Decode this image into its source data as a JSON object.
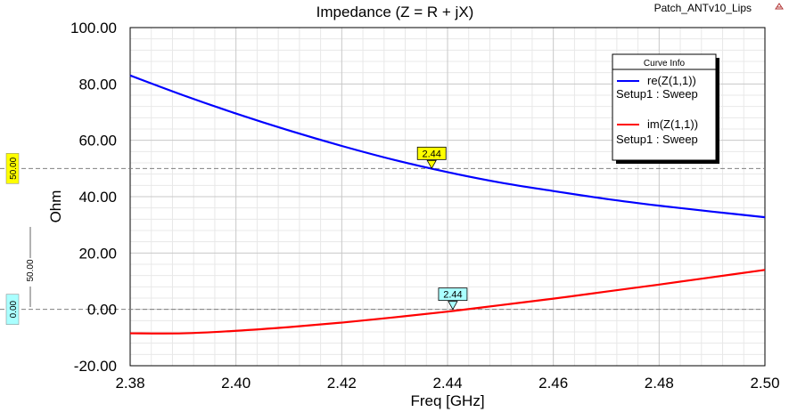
{
  "project_name": "Patch_ANTv10_Lips",
  "chart_data": {
    "type": "line",
    "title": "Impedance (Z = R + jX)",
    "xlabel": "Freq [GHz]",
    "ylabel": "Ohm",
    "xlim": [
      2.38,
      2.5
    ],
    "ylim": [
      -20,
      100
    ],
    "x_ticks": [
      "2.38",
      "2.40",
      "2.42",
      "2.44",
      "2.46",
      "2.48",
      "2.50"
    ],
    "y_ticks": [
      "-20.00",
      "0.00",
      "20.00",
      "40.00",
      "60.00",
      "80.00",
      "100.00"
    ],
    "grid": true,
    "legend_title": "Curve Info",
    "legend_position": "top-right",
    "x": [
      2.38,
      2.39,
      2.4,
      2.41,
      2.42,
      2.43,
      2.44,
      2.45,
      2.46,
      2.47,
      2.48,
      2.49,
      2.5
    ],
    "series": [
      {
        "name": "re(Z(1,1))",
        "setup": "Setup1 : Sweep",
        "color": "#0000ff",
        "values": [
          83.0,
          76.0,
          69.5,
          63.5,
          58.0,
          53.0,
          48.7,
          45.0,
          42.0,
          39.2,
          36.8,
          34.7,
          32.7
        ]
      },
      {
        "name": "im(Z(1,1))",
        "setup": "Setup1 : Sweep",
        "color": "#ff0000",
        "values": [
          -8.5,
          -8.5,
          -7.6,
          -6.3,
          -4.7,
          -2.8,
          -0.8,
          1.5,
          3.8,
          6.3,
          8.8,
          11.4,
          14.0
        ]
      }
    ],
    "markers": [
      {
        "label": "2.44",
        "x": 2.437,
        "y": 50.0,
        "color": "#ffff00"
      },
      {
        "label": "2.44",
        "x": 2.441,
        "y": 0.0,
        "color": "#aaffff"
      }
    ],
    "reference_lines": [
      {
        "label": "50.00",
        "y": 50.0,
        "color": "#ffff00"
      },
      {
        "label": "0.00",
        "y": 0.0,
        "color": "#aaffff"
      }
    ],
    "side_scale_label": "50.00"
  }
}
